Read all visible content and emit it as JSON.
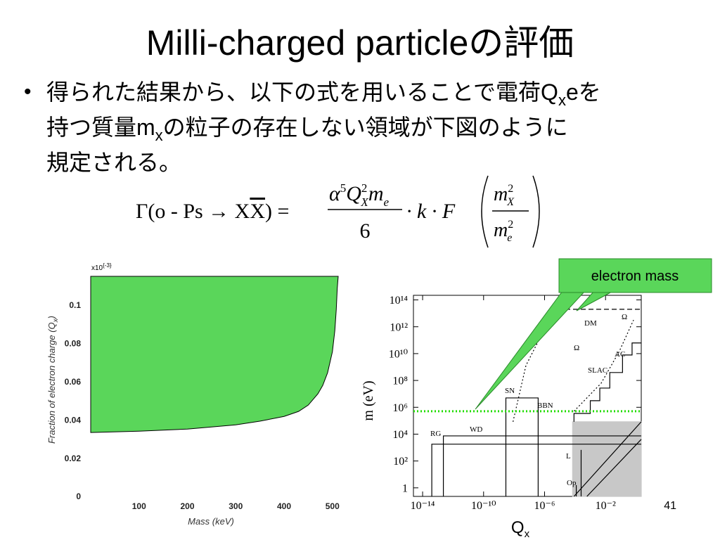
{
  "title": "Milli-charged particleの評価",
  "bullet": {
    "lines": [
      [
        "得られた結果から、以下の式を用いることで電荷Q",
        "x",
        "eを"
      ],
      [
        "持つ質量m",
        "x",
        "の粒子の存在しない領域が下図のように"
      ],
      [
        "規定される。"
      ]
    ]
  },
  "formula": {
    "lhs": "Γ(o - Ps → X",
    "lhs_bar": "X",
    "lhs_end": ") =",
    "alpha": "α",
    "alpha_exp": "5",
    "q": "Q",
    "q_exp": "2",
    "q_sub": "X",
    "m": "m",
    "m_sub": "e",
    "denominator": "6",
    "middle": "· k · F",
    "arg_num": "m",
    "arg_num_exp": "2",
    "arg_num_sub": "X",
    "arg_den": "m",
    "arg_den_exp": "2",
    "arg_den_sub": "e"
  },
  "chart_data": [
    {
      "type": "area",
      "fill": "above",
      "color": "#5ad65a",
      "xlabel": "Mass (keV)",
      "ylabel": "Fraction of electron charge (Q",
      "ylabel_sub": "x",
      "ylabel_end": ")",
      "y_multiplier": "x10",
      "y_multiplier_exp": "{-3}",
      "x": [
        0,
        100,
        200,
        300,
        350,
        400,
        430,
        450,
        470,
        480,
        490,
        500,
        505,
        508,
        510,
        512
      ],
      "values": [
        0.0334,
        0.0341,
        0.0352,
        0.0374,
        0.0393,
        0.0418,
        0.0444,
        0.0477,
        0.0536,
        0.058,
        0.0646,
        0.0756,
        0.0866,
        0.0976,
        0.1086,
        0.115
      ],
      "xlim": [
        0,
        512
      ],
      "ylim": [
        0,
        0.115
      ],
      "xticks": [
        100,
        200,
        300,
        400,
        500
      ],
      "yticks": [
        0,
        0.02,
        0.04,
        0.06,
        0.08,
        0.1
      ]
    },
    {
      "type": "line",
      "log_x": true,
      "log_y": true,
      "xlabel": "Q",
      "xlabel_sub": "x",
      "ylabel": "m (eV)",
      "xlim": [
        2.5e-15,
        2.2
      ],
      "ylim": [
        0.23,
        220000000000000.0
      ],
      "xticks": [
        {
          "value": 1e-14,
          "label": "10⁻¹⁴"
        },
        {
          "value": 1e-10,
          "label": "10⁻¹⁰"
        },
        {
          "value": 1e-06,
          "label": "10⁻⁶"
        },
        {
          "value": 0.01,
          "label": "10⁻²"
        }
      ],
      "yticks": [
        1,
        {
          "value": 100,
          "label": "10²"
        },
        {
          "value": 10000,
          "label": "10⁴"
        },
        {
          "value": 1000000.0,
          "label": "10⁶"
        },
        {
          "value": 100000000.0,
          "label": "10⁸"
        },
        {
          "value": 10000000000.0,
          "label": "10¹⁰"
        },
        {
          "value": 1000000000000.0,
          "label": "10¹²"
        },
        {
          "value": 100000000000000.0,
          "label": "10¹⁴"
        }
      ],
      "labels": [
        "RG",
        "WD",
        "SN",
        "BBN",
        "DM",
        "Ω",
        "Ω",
        "AC",
        "SLAC",
        "L",
        "Op"
      ],
      "series": [
        {
          "x": [
            6.9e-05,
            2.2
          ],
          "values": [
            83000,
            83000
          ],
          "color": "#c8c8c8",
          "fill": "#c8c8c8",
          "dash": "solid"
        },
        {
          "x": [
            8.5e-05,
            2.2
          ],
          "values": [
            0.23,
            83000
          ],
          "color": "#000000",
          "dash": "solid"
        },
        {
          "x": [
            0.0006,
            2.2
          ],
          "values": [
            0.23,
            4100
          ],
          "color": "#000000",
          "dash": "solid"
        },
        {
          "x": [
            4e-14,
            4e-14,
            2.2
          ],
          "values": [
            0.23,
            1800,
            1800
          ],
          "color": "#000000",
          "dash": "solid"
        },
        {
          "x": [
            2.3e-13,
            2.3e-13,
            2.2
          ],
          "values": [
            0.23,
            7400,
            7400
          ],
          "color": "#000000",
          "dash": "solid"
        },
        {
          "x": [
            2.9e-09,
            2.9e-09,
            3.8e-07,
            3.8e-07
          ],
          "values": [
            0.23,
            5000000.0,
            5000000.0,
            0.23
          ],
          "color": "#000000",
          "dash": "solid"
        },
        {
          "x": [
            8.5e-09,
            6e-08,
            8.9e-07,
            2.3e-05
          ],
          "values": [
            83000,
            1300000000.0,
            540000000000.0,
            220000000000000.0
          ],
          "color": "#000000",
          "dash": "dotted"
        },
        {
          "x": [
            8.5e-05,
            0.0052,
            0.078,
            0.69
          ],
          "values": [
            510000,
            63000000.0,
            14000000000.0,
            3200000000000.0
          ],
          "color": "#000000",
          "dash": "dotted"
        },
        {
          "x": [
            8.5e-05,
            8.5e-05,
            0.001,
            0.001,
            0.0042,
            0.0042,
            0.019,
            0.019,
            0.13,
            0.13,
            0.55,
            0.55,
            2.2
          ],
          "values": [
            83000,
            350000,
            350000,
            3100000.0,
            3100000.0,
            27000000.0,
            27000000.0,
            390000000.0,
            390000000.0,
            7900000000.0,
            7900000000.0,
            62000000000.0,
            62000000000.0
          ],
          "color": "#000000",
          "dash": "solid"
        },
        {
          "x": [
            2.3e-05,
            2.2
          ],
          "values": [
            20000000000000.0,
            20000000000000.0
          ],
          "color": "#000000",
          "dash": "dashed"
        },
        {
          "x": [
            2.3e-05,
            8.5e-05
          ],
          "values": [
            20000000000000.0,
            220000000000000.0
          ],
          "color": "#000000",
          "dash": "solid"
        },
        {
          "x": [
            0.00025,
            0.00025
          ],
          "values": [
            670,
            0.23
          ],
          "color": "#000000",
          "dash": "solid"
        },
        {
          "x": [
            0.00012,
            0.00012
          ],
          "values": [
            1.6,
            0.23
          ],
          "color": "#000000",
          "dash": "solid"
        },
        {
          "x": [
            2.5e-15,
            2.2
          ],
          "values": [
            511000,
            511000
          ],
          "color": "#22dd00",
          "dash": "dotted",
          "width": 3
        }
      ]
    }
  ],
  "callout": "electron mass",
  "page_number": "41"
}
